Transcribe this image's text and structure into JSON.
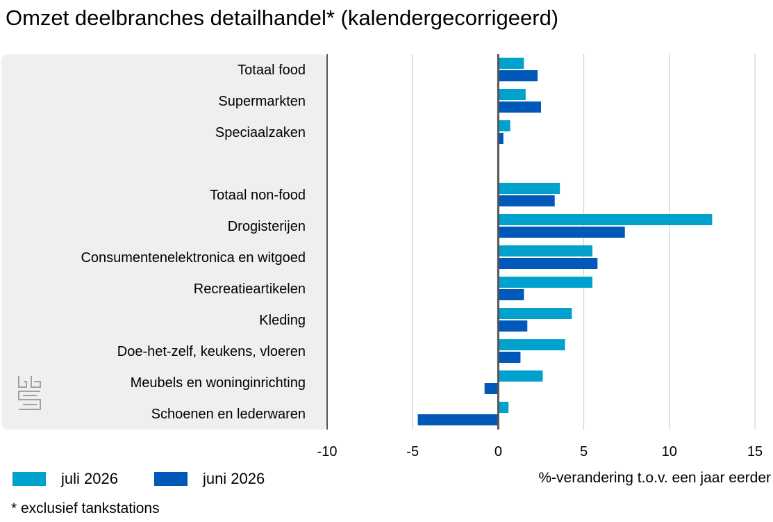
{
  "chart_data": {
    "type": "bar",
    "orientation": "horizontal",
    "title": "Omzet deelbranches detailhandel*  (kalendergecorrigeerd)",
    "xlabel": "%-verandering t.o.v. een jaar eerder",
    "xlim": [
      -10,
      15
    ],
    "xticks": [
      "-10",
      "-5",
      "0",
      "5",
      "10",
      "15"
    ],
    "grid": true,
    "legend_position": "bottom-left",
    "footnote": "* exclusief tankstations",
    "categories": [
      "Totaal food",
      "Supermarkten",
      "Speciaalzaken",
      "",
      "Totaal non-food",
      "Drogisterijen",
      "Consumentenelektronica en witgoed",
      "Recreatieartikelen",
      "Kleding",
      "Doe-het-zelf, keukens, vloeren",
      "Meubels en woninginrichting",
      "Schoenen en lederwaren"
    ],
    "series": [
      {
        "name": "juli 2026",
        "color": "#00a1cd",
        "values": [
          1.5,
          1.6,
          0.7,
          null,
          3.6,
          12.5,
          5.5,
          5.5,
          4.3,
          3.9,
          2.6,
          0.6
        ]
      },
      {
        "name": "juni 2026",
        "color": "#0058b8",
        "values": [
          2.3,
          2.5,
          0.3,
          null,
          3.3,
          7.4,
          5.8,
          1.5,
          1.7,
          1.3,
          -0.8,
          -4.7
        ]
      }
    ]
  },
  "colors": {
    "panel_background": "#efefef",
    "gridline": "#c8c8c8",
    "axis_line": "#555555",
    "logo": "#a0a0a0"
  }
}
